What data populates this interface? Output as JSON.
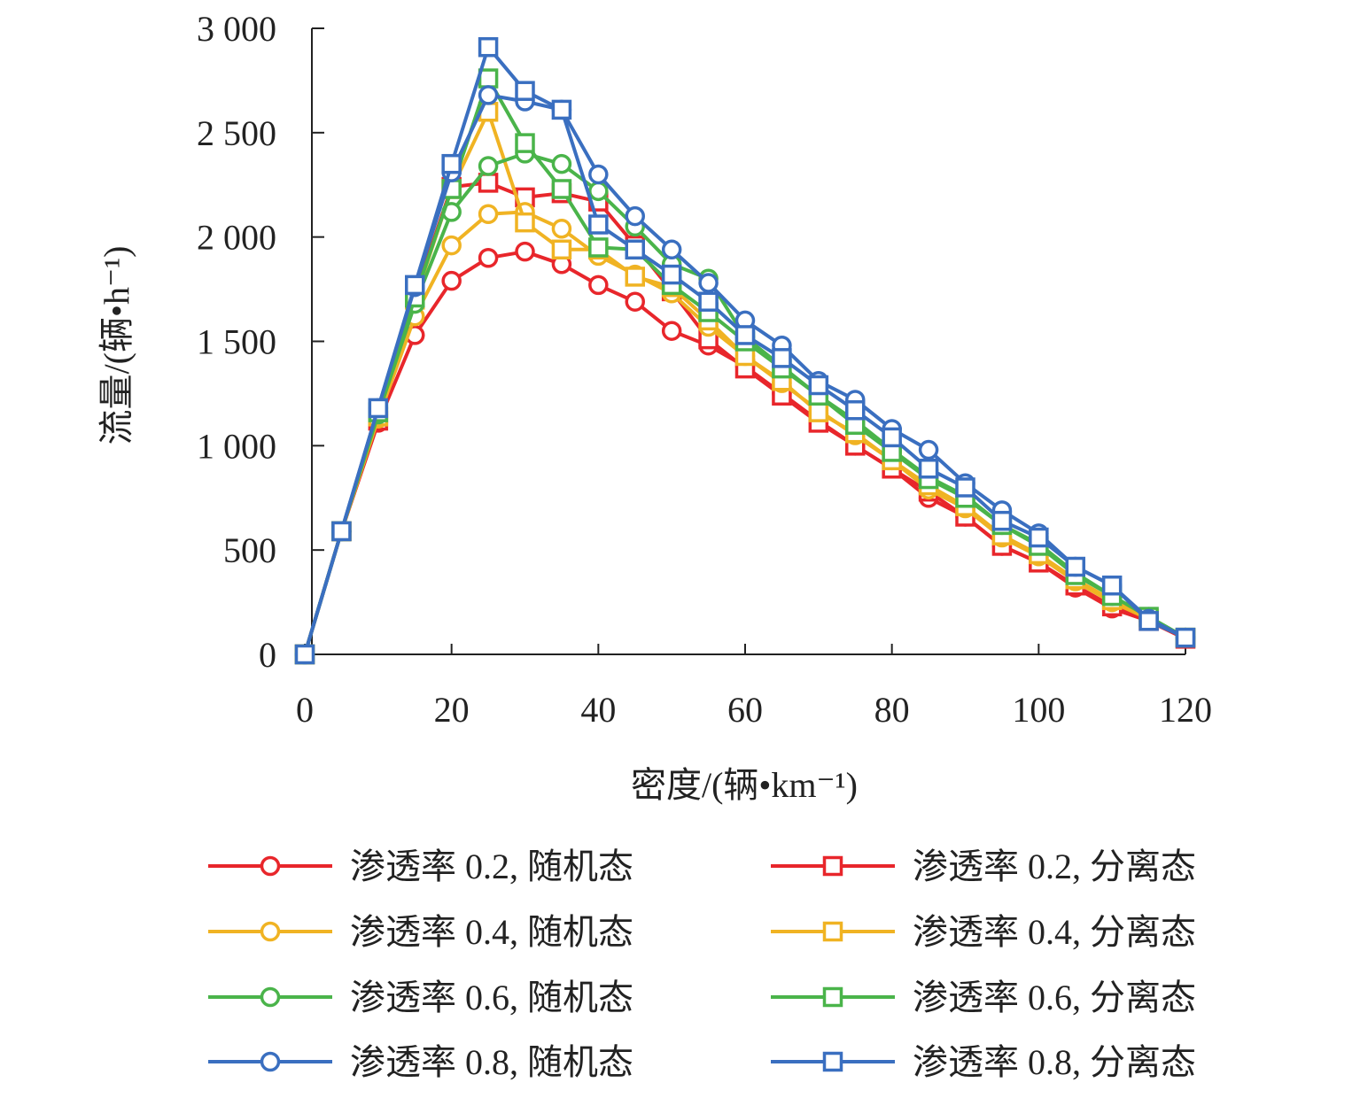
{
  "chart_data": {
    "type": "line",
    "xlabel": "密度/(辆•km⁻¹)",
    "ylabel": "流量/(辆•h⁻¹)",
    "xlim": [
      0,
      120
    ],
    "ylim": [
      0,
      3000
    ],
    "xticks": [
      0,
      20,
      40,
      60,
      80,
      100,
      120
    ],
    "yticks": [
      0,
      500,
      1000,
      1500,
      2000,
      2500,
      3000
    ],
    "xtick_labels": [
      "0",
      "20",
      "40",
      "60",
      "80",
      "100",
      "120"
    ],
    "ytick_labels": [
      "0",
      "500",
      "1 000",
      "1 500",
      "2 000",
      "2 500",
      "3 000"
    ],
    "grid": false,
    "legend_position": "bottom",
    "x": [
      0,
      5,
      10,
      15,
      20,
      25,
      30,
      35,
      40,
      45,
      50,
      55,
      60,
      65,
      70,
      75,
      80,
      85,
      90,
      95,
      100,
      105,
      110,
      115,
      120
    ],
    "series": [
      {
        "name": "渗透率 0.2, 随机态",
        "color": "#e8262b",
        "marker": "circle",
        "values": [
          0,
          590,
          1110,
          1530,
          1790,
          1900,
          1930,
          1870,
          1770,
          1690,
          1550,
          1480,
          1380,
          1250,
          1120,
          1000,
          890,
          750,
          660,
          520,
          440,
          320,
          220,
          160,
          75
        ]
      },
      {
        "name": "渗透率 0.2, 分离态",
        "color": "#e8262b",
        "marker": "square",
        "values": [
          0,
          590,
          1120,
          1720,
          2240,
          2260,
          2190,
          2210,
          2170,
          1960,
          1740,
          1510,
          1370,
          1240,
          1110,
          1000,
          890,
          780,
          660,
          520,
          440,
          330,
          230,
          160,
          75
        ]
      },
      {
        "name": "渗透率 0.4, 随机态",
        "color": "#f0b323",
        "marker": "circle",
        "values": [
          0,
          590,
          1130,
          1620,
          1960,
          2110,
          2120,
          2040,
          1910,
          1820,
          1730,
          1570,
          1430,
          1300,
          1170,
          1050,
          930,
          790,
          700,
          560,
          470,
          350,
          250,
          170,
          80
        ]
      },
      {
        "name": "渗透率 0.4, 分离态",
        "color": "#f0b323",
        "marker": "square",
        "values": [
          0,
          590,
          1140,
          1700,
          2230,
          2600,
          2070,
          1940,
          1940,
          1810,
          1760,
          1600,
          1430,
          1310,
          1160,
          1060,
          930,
          810,
          710,
          570,
          480,
          360,
          260,
          170,
          80
        ]
      },
      {
        "name": "渗透率 0.6, 随机态",
        "color": "#4ab44a",
        "marker": "circle",
        "values": [
          0,
          590,
          1150,
          1680,
          2120,
          2340,
          2400,
          2350,
          2220,
          2050,
          1870,
          1800,
          1520,
          1380,
          1240,
          1120,
          980,
          850,
          760,
          620,
          530,
          390,
          280,
          180,
          80
        ]
      },
      {
        "name": "渗透率 0.6, 分离态",
        "color": "#4ab44a",
        "marker": "square",
        "values": [
          0,
          590,
          1160,
          1710,
          2230,
          2760,
          2450,
          2230,
          1950,
          1940,
          1770,
          1640,
          1500,
          1370,
          1240,
          1100,
          970,
          840,
          750,
          620,
          520,
          380,
          280,
          180,
          80
        ]
      },
      {
        "name": "渗透率 0.8, 随机态",
        "color": "#3a6fc0",
        "marker": "circle",
        "values": [
          0,
          590,
          1180,
          1760,
          2310,
          2680,
          2650,
          2610,
          2300,
          2100,
          1940,
          1780,
          1600,
          1480,
          1310,
          1220,
          1080,
          980,
          820,
          690,
          580,
          420,
          330,
          170,
          80
        ]
      },
      {
        "name": "渗透率 0.8, 分离态",
        "color": "#3a6fc0",
        "marker": "square",
        "values": [
          0,
          590,
          1180,
          1770,
          2350,
          2910,
          2700,
          2610,
          2060,
          1940,
          1820,
          1690,
          1530,
          1420,
          1290,
          1170,
          1040,
          890,
          800,
          640,
          560,
          420,
          330,
          160,
          80
        ]
      }
    ]
  }
}
